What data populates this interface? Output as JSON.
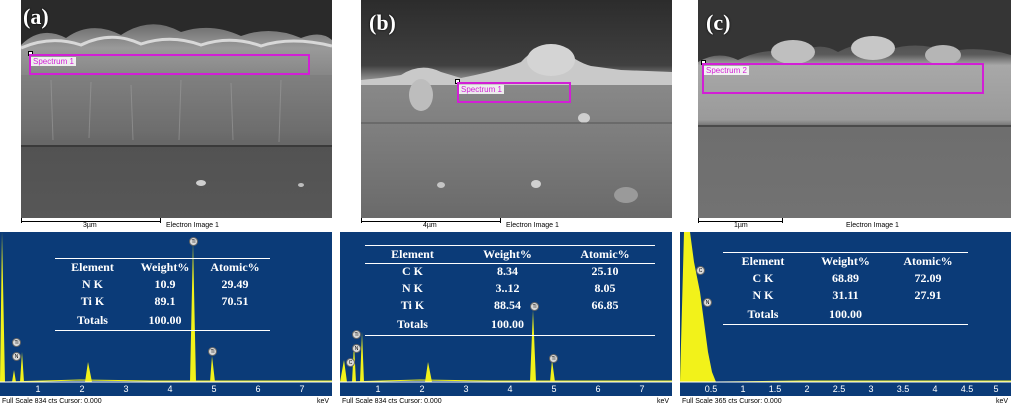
{
  "panels": [
    {
      "letter": "(a)",
      "scale_label": "3µm",
      "image_label": "Electron Image 1",
      "spectrum_label": "Spectrum 1",
      "table": {
        "headers": [
          "Element",
          "Weight%",
          "Atomic%"
        ],
        "rows": [
          [
            "N K",
            "10.9",
            "29.49"
          ],
          [
            "Ti K",
            "89.1",
            "70.51"
          ]
        ],
        "totals": [
          "Totals",
          "100.00",
          ""
        ]
      },
      "footer": "Full Scale 834 cts Cursor: 0.000",
      "ticks": [
        "1",
        "2",
        "3",
        "4",
        "5",
        "6",
        "7"
      ],
      "peak_labels": [
        "Ti",
        "N",
        "Ti",
        "Ti"
      ]
    },
    {
      "letter": "(b)",
      "scale_label": "4µm",
      "image_label": "Electron Image 1",
      "spectrum_label": "Spectrum 1",
      "table": {
        "headers": [
          "Element",
          "Weight%",
          "Atomic%"
        ],
        "rows": [
          [
            "C K",
            "8.34",
            "25.10"
          ],
          [
            "N K",
            "3..12",
            "8.05"
          ],
          [
            "Ti K",
            "88.54",
            "66.85"
          ]
        ],
        "totals": [
          "Totals",
          "100.00",
          ""
        ]
      },
      "footer": "Full Scale 834 cts Cursor: 0.000",
      "ticks": [
        "1",
        "2",
        "3",
        "4",
        "5",
        "6",
        "7"
      ],
      "peak_labels": [
        "Ti",
        "N",
        "C",
        "Ti",
        "Ti"
      ]
    },
    {
      "letter": "(c)",
      "scale_label": "1µm",
      "image_label": "Electron Image 1",
      "spectrum_label": "Spectrum 2",
      "table": {
        "headers": [
          "Element",
          "Weight%",
          "Atomic%"
        ],
        "rows": [
          [
            "C K",
            "68.89",
            "72.09"
          ],
          [
            "N K",
            "31.11",
            "27.91"
          ]
        ],
        "totals": [
          "Totals",
          "100.00",
          ""
        ]
      },
      "footer": "Full Scale 365 cts Cursor: 0.000",
      "ticks": [
        "0.5",
        "1",
        "1.5",
        "2",
        "2.5",
        "3",
        "3.5",
        "4",
        "4.5",
        "5"
      ],
      "peak_labels": [
        "C",
        "N"
      ]
    }
  ],
  "unit": "keV",
  "colors": {
    "eds_background": "#0b3b78",
    "spectrum_fill": "#f2f21a",
    "spectrum_box": "#d21fd6",
    "table_text": "#ffffff"
  }
}
